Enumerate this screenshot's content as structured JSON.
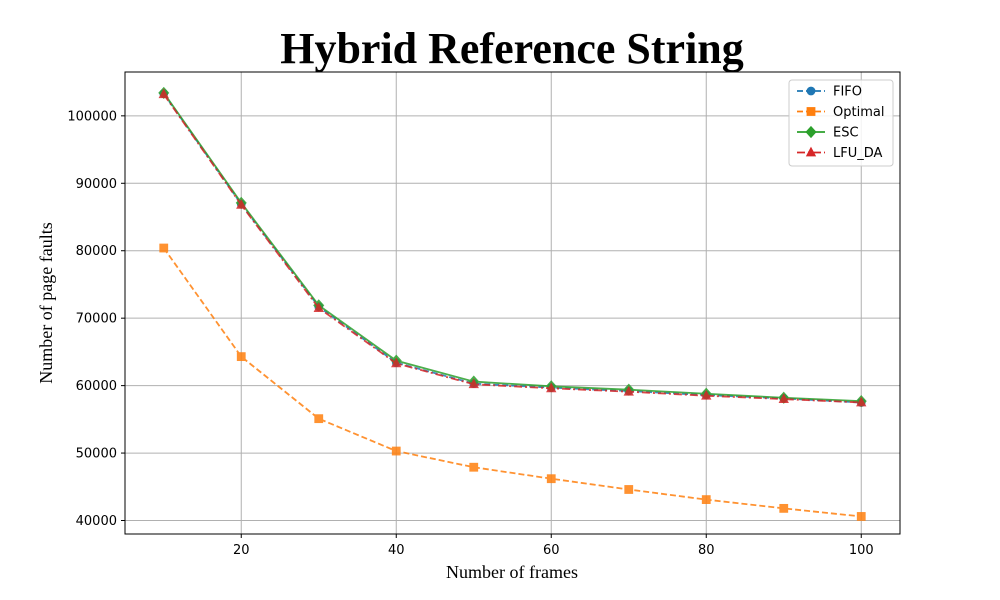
{
  "chart_data": {
    "type": "line",
    "title": "Hybrid Reference String",
    "xlabel": "Number of frames",
    "ylabel": "Number of page faults",
    "xlim": [
      5,
      105
    ],
    "ylim": [
      38000,
      106500
    ],
    "xticks": [
      20,
      40,
      60,
      80,
      100
    ],
    "yticks": [
      40000,
      50000,
      60000,
      70000,
      80000,
      90000,
      100000
    ],
    "grid": true,
    "legend_position": "top-right",
    "x": [
      10,
      20,
      30,
      40,
      50,
      60,
      70,
      80,
      90,
      100
    ],
    "series": [
      {
        "name": "FIFO",
        "color": "#1f77b4",
        "marker": "circle",
        "linestyle": "dashed",
        "values": [
          103300,
          86900,
          71700,
          63400,
          60300,
          59700,
          59200,
          58600,
          58100,
          57500
        ]
      },
      {
        "name": "Optimal",
        "color": "#ff7f0e",
        "marker": "square",
        "linestyle": "dashed",
        "values": [
          80400,
          64300,
          55100,
          50300,
          47900,
          46200,
          44600,
          43100,
          41800,
          40600
        ]
      },
      {
        "name": "ESC",
        "color": "#2ca02c",
        "marker": "diamond",
        "linestyle": "solid",
        "values": [
          103400,
          87100,
          71900,
          63700,
          60600,
          59900,
          59400,
          58800,
          58200,
          57700
        ]
      },
      {
        "name": "LFU_DA",
        "color": "#d62728",
        "marker": "triangle",
        "linestyle": "dashdot",
        "values": [
          103200,
          86800,
          71500,
          63300,
          60200,
          59600,
          59100,
          58500,
          58000,
          57500
        ]
      }
    ]
  }
}
